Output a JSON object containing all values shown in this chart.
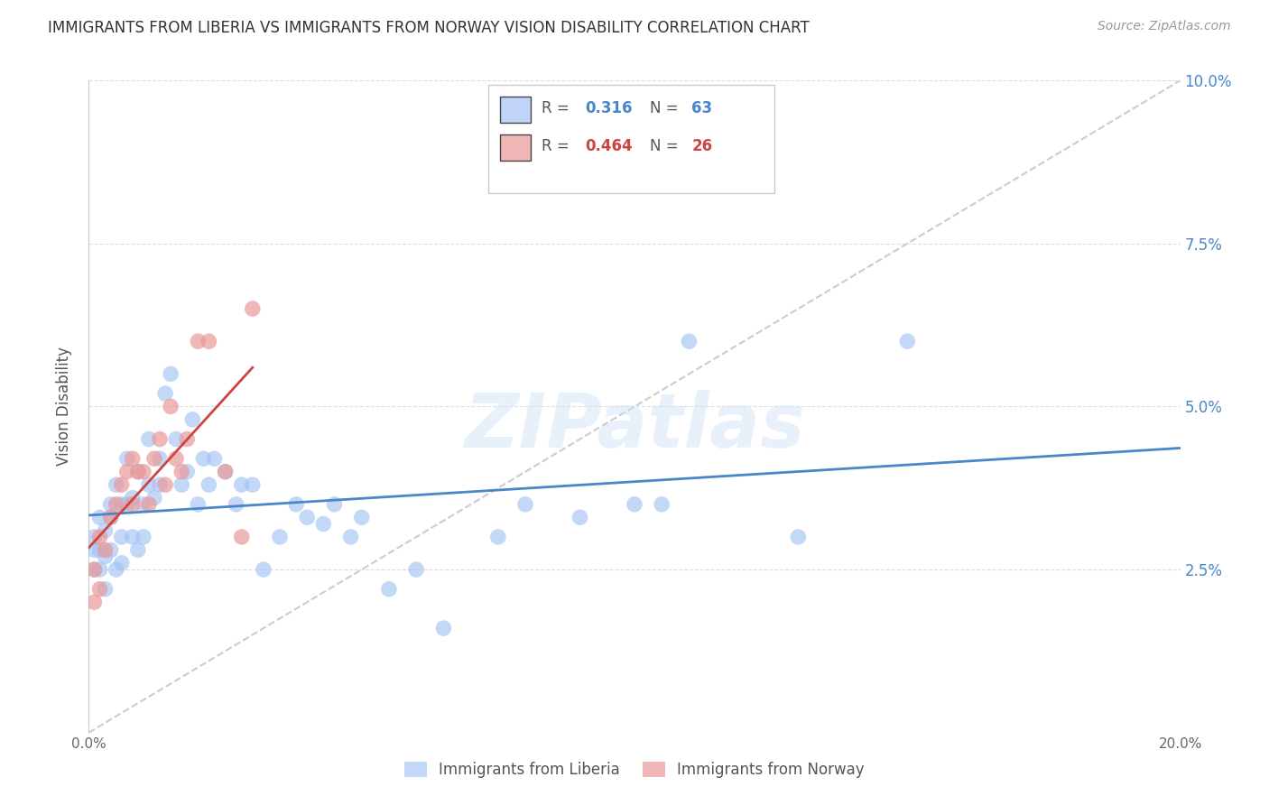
{
  "title": "IMMIGRANTS FROM LIBERIA VS IMMIGRANTS FROM NORWAY VISION DISABILITY CORRELATION CHART",
  "source": "Source: ZipAtlas.com",
  "ylabel": "Vision Disability",
  "xlim": [
    0.0,
    0.2
  ],
  "ylim": [
    0.0,
    0.1
  ],
  "liberia_color": "#a4c2f4",
  "norway_color": "#ea9999",
  "liberia_R": 0.316,
  "liberia_N": 63,
  "norway_R": 0.464,
  "norway_N": 26,
  "liberia_trendline_color": "#4a86c8",
  "norway_trendline_color": "#cc4444",
  "diagonal_color": "#cccccc",
  "watermark": "ZIPatlas",
  "liberia_x": [
    0.001,
    0.001,
    0.001,
    0.002,
    0.002,
    0.002,
    0.003,
    0.003,
    0.003,
    0.004,
    0.004,
    0.004,
    0.005,
    0.005,
    0.006,
    0.006,
    0.006,
    0.007,
    0.007,
    0.008,
    0.008,
    0.009,
    0.009,
    0.01,
    0.01,
    0.011,
    0.011,
    0.012,
    0.013,
    0.013,
    0.014,
    0.015,
    0.016,
    0.017,
    0.018,
    0.019,
    0.02,
    0.021,
    0.022,
    0.023,
    0.025,
    0.027,
    0.028,
    0.03,
    0.032,
    0.035,
    0.038,
    0.04,
    0.043,
    0.045,
    0.048,
    0.05,
    0.055,
    0.06,
    0.065,
    0.075,
    0.08,
    0.09,
    0.1,
    0.105,
    0.11,
    0.13,
    0.15
  ],
  "liberia_y": [
    0.03,
    0.028,
    0.025,
    0.025,
    0.028,
    0.033,
    0.022,
    0.027,
    0.031,
    0.028,
    0.033,
    0.035,
    0.025,
    0.038,
    0.03,
    0.026,
    0.035,
    0.035,
    0.042,
    0.03,
    0.036,
    0.028,
    0.04,
    0.03,
    0.035,
    0.038,
    0.045,
    0.036,
    0.038,
    0.042,
    0.052,
    0.055,
    0.045,
    0.038,
    0.04,
    0.048,
    0.035,
    0.042,
    0.038,
    0.042,
    0.04,
    0.035,
    0.038,
    0.038,
    0.025,
    0.03,
    0.035,
    0.033,
    0.032,
    0.035,
    0.03,
    0.033,
    0.022,
    0.025,
    0.016,
    0.03,
    0.035,
    0.033,
    0.035,
    0.035,
    0.06,
    0.03,
    0.06
  ],
  "norway_x": [
    0.001,
    0.001,
    0.002,
    0.002,
    0.003,
    0.004,
    0.005,
    0.006,
    0.007,
    0.008,
    0.008,
    0.009,
    0.01,
    0.011,
    0.012,
    0.013,
    0.014,
    0.015,
    0.016,
    0.017,
    0.018,
    0.02,
    0.022,
    0.025,
    0.028,
    0.03
  ],
  "norway_y": [
    0.02,
    0.025,
    0.022,
    0.03,
    0.028,
    0.033,
    0.035,
    0.038,
    0.04,
    0.035,
    0.042,
    0.04,
    0.04,
    0.035,
    0.042,
    0.045,
    0.038,
    0.05,
    0.042,
    0.04,
    0.045,
    0.06,
    0.06,
    0.04,
    0.03,
    0.065
  ]
}
